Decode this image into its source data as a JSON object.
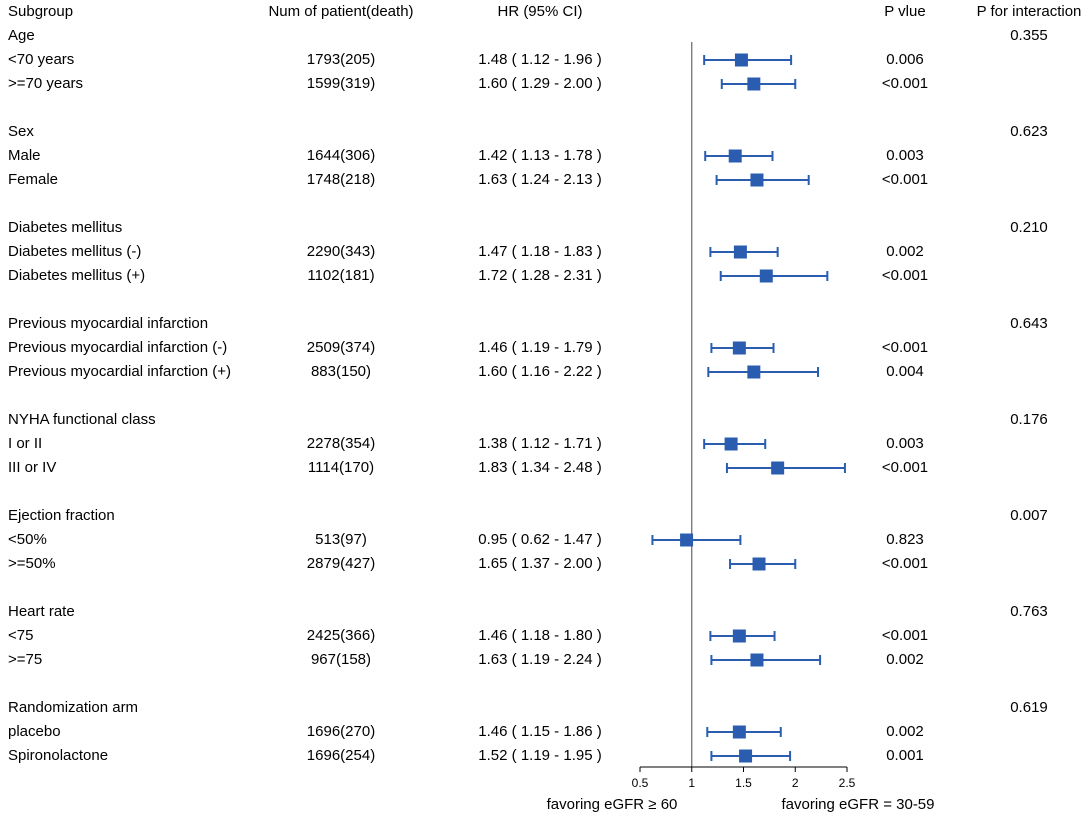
{
  "chart_data": {
    "type": "forest",
    "headers": {
      "subgroup": "Subgroup",
      "n": "Num of patient(death)",
      "hr": "HR (95% CI)",
      "p": "P vlue",
      "p_interaction": "P for interaction"
    },
    "groups": [
      {
        "name": "Age",
        "p_interaction": "0.355",
        "rows": [
          {
            "label": "<70 years",
            "n": "1793(205)",
            "hr_text": "1.48 ( 1.12 - 1.96 )",
            "hr": 1.48,
            "lo": 1.12,
            "hi": 1.96,
            "p": "0.006"
          },
          {
            "label": ">=70 years",
            "n": "1599(319)",
            "hr_text": "1.60 ( 1.29 - 2.00 )",
            "hr": 1.6,
            "lo": 1.29,
            "hi": 2.0,
            "p": "<0.001"
          }
        ]
      },
      {
        "name": "Sex",
        "p_interaction": "0.623",
        "rows": [
          {
            "label": "Male",
            "n": "1644(306)",
            "hr_text": "1.42 ( 1.13 - 1.78 )",
            "hr": 1.42,
            "lo": 1.13,
            "hi": 1.78,
            "p": "0.003"
          },
          {
            "label": "Female",
            "n": "1748(218)",
            "hr_text": "1.63 ( 1.24 - 2.13 )",
            "hr": 1.63,
            "lo": 1.24,
            "hi": 2.13,
            "p": "<0.001"
          }
        ]
      },
      {
        "name": "Diabetes mellitus",
        "p_interaction": "0.210",
        "rows": [
          {
            "label": "Diabetes mellitus (-)",
            "n": "2290(343)",
            "hr_text": "1.47 ( 1.18 - 1.83 )",
            "hr": 1.47,
            "lo": 1.18,
            "hi": 1.83,
            "p": "0.002"
          },
          {
            "label": "Diabetes mellitus (+)",
            "n": "1102(181)",
            "hr_text": "1.72 ( 1.28 - 2.31 )",
            "hr": 1.72,
            "lo": 1.28,
            "hi": 2.31,
            "p": "<0.001"
          }
        ]
      },
      {
        "name": "Previous myocardial infarction",
        "p_interaction": "0.643",
        "rows": [
          {
            "label": "Previous myocardial infarction (-)",
            "n": "2509(374)",
            "hr_text": "1.46 ( 1.19 - 1.79 )",
            "hr": 1.46,
            "lo": 1.19,
            "hi": 1.79,
            "p": "<0.001"
          },
          {
            "label": "Previous myocardial infarction (+)",
            "n": "883(150)",
            "hr_text": "1.60 ( 1.16 - 2.22 )",
            "hr": 1.6,
            "lo": 1.16,
            "hi": 2.22,
            "p": "0.004"
          }
        ]
      },
      {
        "name": "NYHA functional class",
        "p_interaction": "0.176",
        "rows": [
          {
            "label": "I or II",
            "n": "2278(354)",
            "hr_text": "1.38 ( 1.12 - 1.71 )",
            "hr": 1.38,
            "lo": 1.12,
            "hi": 1.71,
            "p": "0.003"
          },
          {
            "label": "III or IV",
            "n": "1114(170)",
            "hr_text": "1.83 ( 1.34 - 2.48 )",
            "hr": 1.83,
            "lo": 1.34,
            "hi": 2.48,
            "p": "<0.001"
          }
        ]
      },
      {
        "name": "Ejection fraction",
        "p_interaction": "0.007",
        "rows": [
          {
            "label": "<50%",
            "n": "513(97)",
            "hr_text": "0.95 ( 0.62 - 1.47 )",
            "hr": 0.95,
            "lo": 0.62,
            "hi": 1.47,
            "p": "0.823"
          },
          {
            "label": ">=50%",
            "n": "2879(427)",
            "hr_text": "1.65 ( 1.37 - 2.00 )",
            "hr": 1.65,
            "lo": 1.37,
            "hi": 2.0,
            "p": "<0.001"
          }
        ]
      },
      {
        "name": "Heart rate",
        "p_interaction": "0.763",
        "rows": [
          {
            "label": "<75",
            "n": "2425(366)",
            "hr_text": "1.46 ( 1.18 - 1.80 )",
            "hr": 1.46,
            "lo": 1.18,
            "hi": 1.8,
            "p": "<0.001"
          },
          {
            "label": ">=75",
            "n": "967(158)",
            "hr_text": "1.63 ( 1.19 - 2.24 )",
            "hr": 1.63,
            "lo": 1.19,
            "hi": 2.24,
            "p": "0.002"
          }
        ]
      },
      {
        "name": "Randomization arm",
        "p_interaction": "0.619",
        "rows": [
          {
            "label": "placebo",
            "n": "1696(270)",
            "hr_text": "1.46 ( 1.15 - 1.86 )",
            "hr": 1.46,
            "lo": 1.15,
            "hi": 1.86,
            "p": "0.002"
          },
          {
            "label": "Spironolactone",
            "n": "1696(254)",
            "hr_text": "1.52 ( 1.19 - 1.95 )",
            "hr": 1.52,
            "lo": 1.19,
            "hi": 1.95,
            "p": "0.001"
          }
        ]
      }
    ],
    "x_axis": {
      "ticks": [
        0.5,
        1,
        1.5,
        2,
        2.5
      ],
      "tick_labels": [
        "0.5",
        "1",
        "1.5",
        "2",
        "2.5"
      ],
      "range": [
        0.5,
        2.5
      ],
      "reference_line": 1
    },
    "favor_left": "favoring eGFR ≥ 60",
    "favor_right": "favoring eGFR = 30-59",
    "colors": {
      "marker": "#2a5db0",
      "reference_line": "#666666",
      "text": "#000000"
    }
  }
}
